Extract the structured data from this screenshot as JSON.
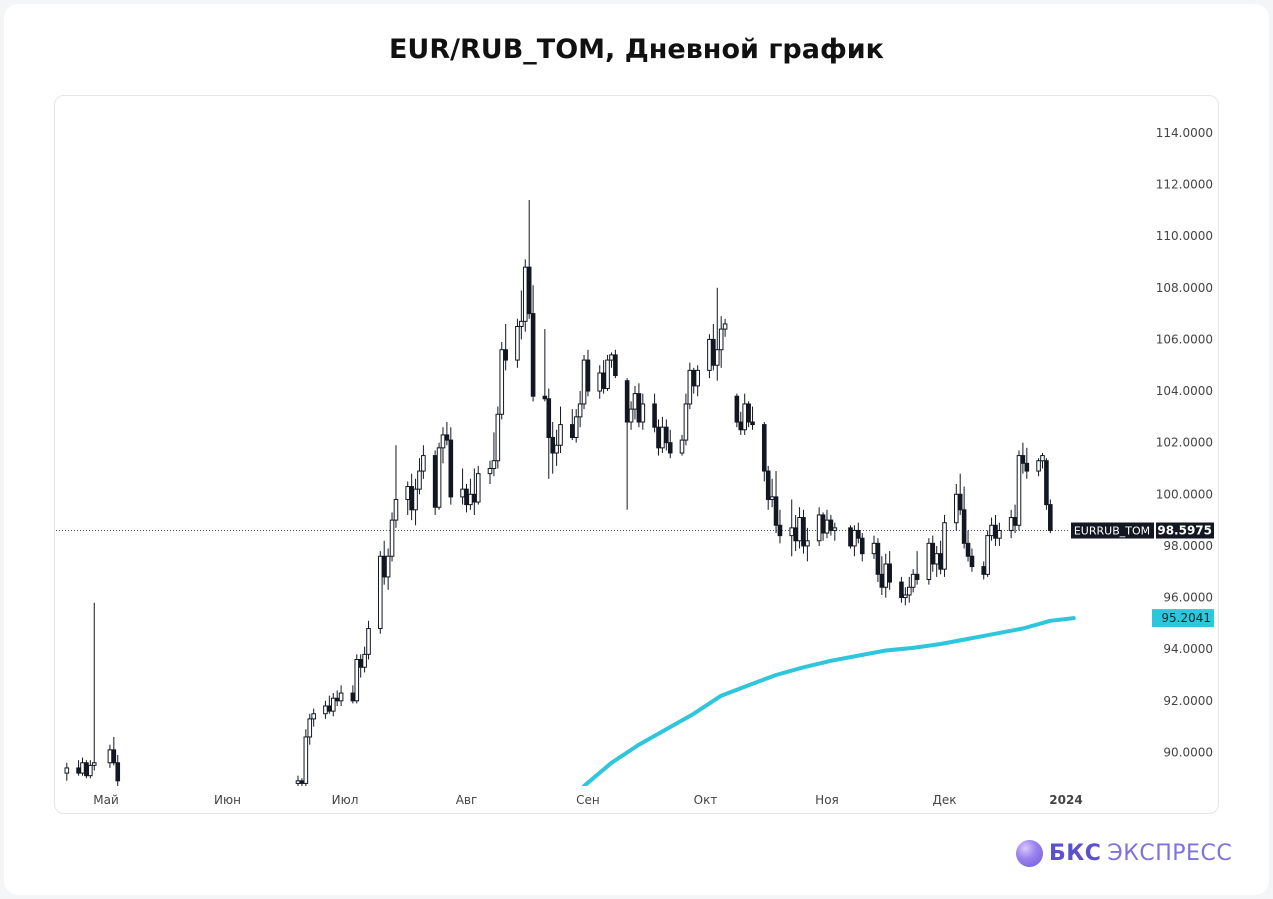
{
  "title": "EUR/RUB_TOM, Дневной график",
  "logo": {
    "brand_bold": "БКС",
    "brand_light": "ЭКСПРЕСС"
  },
  "chart_data": {
    "type": "candlestick",
    "ylim": [
      88.7,
      115.3
    ],
    "y_ticks": [
      90,
      92,
      94,
      96,
      98,
      100,
      102,
      104,
      106,
      108,
      110,
      112,
      114
    ],
    "y_tick_labels": [
      "90.0000",
      "92.0000",
      "94.0000",
      "96.0000",
      "98.0000",
      "100.0000",
      "102.0000",
      "104.0000",
      "106.0000",
      "108.0000",
      "110.0000",
      "112.0000",
      "114.0000"
    ],
    "x_ticks": [
      "Май",
      "Июн",
      "Июл",
      "Авг",
      "Сен",
      "Окт",
      "Ноя",
      "Дек",
      "2024"
    ],
    "grid": false,
    "colors": {
      "candle": "#131722",
      "ma_line": "#2ec6dc",
      "price_label_bg": "#131722",
      "ma_label_bg": "#2ec6dc",
      "axis_text": "#444444",
      "last_price_line": "#555555"
    },
    "last_price": {
      "symbol": "EURRUB_TOM",
      "value_text": "98.5975",
      "value": 98.5975
    },
    "moving_average": {
      "value_text": "95.2041",
      "points": [
        [
          "Авг 31",
          88.7
        ],
        [
          "Сен 7",
          89.6
        ],
        [
          "Сен 14",
          90.3
        ],
        [
          "Сен 21",
          90.9
        ],
        [
          "Сен 28",
          91.5
        ],
        [
          "Окт 5",
          92.2
        ],
        [
          "Окт 12",
          92.6
        ],
        [
          "Окт 19",
          93.0
        ],
        [
          "Окт 26",
          93.3
        ],
        [
          "Ноя 2",
          93.55
        ],
        [
          "Ноя 9",
          93.75
        ],
        [
          "Ноя 16",
          93.95
        ],
        [
          "Ноя 23",
          94.05
        ],
        [
          "Ноя 30",
          94.2
        ],
        [
          "Дек 7",
          94.4
        ],
        [
          "Дек 14",
          94.6
        ],
        [
          "Дек 21",
          94.8
        ],
        [
          "Дек 28",
          95.1
        ],
        [
          "Янв 3",
          95.2041
        ]
      ]
    },
    "candles": [
      [
        "Апр 21",
        89.2,
        89.6,
        88.9,
        89.4
      ],
      [
        "Апр 24",
        89.4,
        89.7,
        89.1,
        89.2
      ],
      [
        "Апр 25",
        89.2,
        89.8,
        89.1,
        89.6
      ],
      [
        "Апр 26",
        89.6,
        89.7,
        89.0,
        89.1
      ],
      [
        "Апр 27",
        89.1,
        89.7,
        89.0,
        89.5
      ],
      [
        "Апр 28",
        89.5,
        95.8,
        89.3,
        89.6
      ],
      [
        "Май 2",
        89.6,
        90.3,
        89.4,
        90.1
      ],
      [
        "Май 3",
        90.1,
        90.6,
        89.5,
        89.6
      ],
      [
        "Май 4",
        89.6,
        89.9,
        88.7,
        88.9
      ],
      [
        "Июн 19",
        88.8,
        89.1,
        88.7,
        88.9
      ],
      [
        "Июн 20",
        88.9,
        89.0,
        88.7,
        88.8
      ],
      [
        "Июн 21",
        88.8,
        90.9,
        88.7,
        90.6
      ],
      [
        "Июн 22",
        90.6,
        91.5,
        90.3,
        91.3
      ],
      [
        "Июн 23",
        91.3,
        91.7,
        91.0,
        91.5
      ],
      [
        "Июн 26",
        91.5,
        92.0,
        91.3,
        91.8
      ],
      [
        "Июн 27",
        91.8,
        92.2,
        91.5,
        91.6
      ],
      [
        "Июн 28",
        91.6,
        92.3,
        91.4,
        92.1
      ],
      [
        "Июн 29",
        92.1,
        92.4,
        91.8,
        92.0
      ],
      [
        "Июн 30",
        92.0,
        92.6,
        91.8,
        92.3
      ],
      [
        "Июл 3",
        92.3,
        92.6,
        91.9,
        92.0
      ],
      [
        "Июл 4",
        92.0,
        93.8,
        91.9,
        93.6
      ],
      [
        "Июл 5",
        93.6,
        93.8,
        92.9,
        93.3
      ],
      [
        "Июл 6",
        93.3,
        94.1,
        93.1,
        93.8
      ],
      [
        "Июл 7",
        93.8,
        95.1,
        93.6,
        94.8
      ],
      [
        "Июл 10",
        94.8,
        97.8,
        94.6,
        97.6
      ],
      [
        "Июл 11",
        97.6,
        98.2,
        96.5,
        96.8
      ],
      [
        "Июл 12",
        96.8,
        97.9,
        96.3,
        97.6
      ],
      [
        "Июл 13",
        97.6,
        99.3,
        97.4,
        99.0
      ],
      [
        "Июл 14",
        99.0,
        101.9,
        98.7,
        99.8
      ],
      [
        "Июл 17",
        99.8,
        100.5,
        99.2,
        100.3
      ],
      [
        "Июл 18",
        100.3,
        100.8,
        99.0,
        99.4
      ],
      [
        "Июл 19",
        99.4,
        100.6,
        98.8,
        100.2
      ],
      [
        "Июл 20",
        100.2,
        101.4,
        100.0,
        100.9
      ],
      [
        "Июл 21",
        100.9,
        101.9,
        100.6,
        101.5
      ],
      [
        "Июл 24",
        101.5,
        101.7,
        99.2,
        99.5
      ],
      [
        "Июл 25",
        99.5,
        102.0,
        99.4,
        101.8
      ],
      [
        "Июл 26",
        101.8,
        102.6,
        101.2,
        102.3
      ],
      [
        "Июл 27",
        102.3,
        102.8,
        101.9,
        102.1
      ],
      [
        "Июл 28",
        102.1,
        102.6,
        99.6,
        99.9
      ],
      [
        "Июл 31",
        99.9,
        101.0,
        99.6,
        100.2
      ],
      [
        "Авг 1",
        100.2,
        100.4,
        99.3,
        99.6
      ],
      [
        "Авг 2",
        99.6,
        100.6,
        99.4,
        100.0
      ],
      [
        "Авг 3",
        100.0,
        101.0,
        99.2,
        99.7
      ],
      [
        "Авг 4",
        99.7,
        101.1,
        99.6,
        100.8
      ],
      [
        "Авг 7",
        100.8,
        101.3,
        100.4,
        101.0
      ],
      [
        "Авг 8",
        101.0,
        102.4,
        100.7,
        101.3
      ],
      [
        "Авг 9",
        101.3,
        103.4,
        101.0,
        103.1
      ],
      [
        "Авг 10",
        103.1,
        105.9,
        102.9,
        105.6
      ],
      [
        "Авг 11",
        105.6,
        106.6,
        104.8,
        105.2
      ],
      [
        "Авг 14",
        105.2,
        106.8,
        104.9,
        106.5
      ],
      [
        "Авг 15",
        106.5,
        107.9,
        106.0,
        106.7
      ],
      [
        "Авг 16",
        106.7,
        109.1,
        106.3,
        108.8
      ],
      [
        "Авг 17",
        108.8,
        111.4,
        106.8,
        107.0
      ],
      [
        "Авг 18",
        107.0,
        108.1,
        103.6,
        103.8
      ],
      [
        "Авг 21",
        103.8,
        106.4,
        103.6,
        103.7
      ],
      [
        "Авг 22",
        103.7,
        104.1,
        100.6,
        102.2
      ],
      [
        "Авг 23",
        102.2,
        102.8,
        100.8,
        101.6
      ],
      [
        "Авг 24",
        101.6,
        102.5,
        101.1,
        101.9
      ],
      [
        "Авг 25",
        101.9,
        103.4,
        101.6,
        102.7
      ],
      [
        "Авг 28",
        102.7,
        103.3,
        102.1,
        102.2
      ],
      [
        "Авг 29",
        102.2,
        103.3,
        102.0,
        103.0
      ],
      [
        "Авг 30",
        103.0,
        104.0,
        102.6,
        103.5
      ],
      [
        "Авг 31",
        103.5,
        105.4,
        103.3,
        105.2
      ],
      [
        "Сен 1",
        105.2,
        105.6,
        103.8,
        104.0
      ],
      [
        "Сен 4",
        104.0,
        105.0,
        103.7,
        104.7
      ],
      [
        "Сен 5",
        104.7,
        105.2,
        103.9,
        104.1
      ],
      [
        "Сен 6",
        104.1,
        105.4,
        104.0,
        105.2
      ],
      [
        "Сен 7",
        105.2,
        105.5,
        104.9,
        105.4
      ],
      [
        "Сен 8",
        105.4,
        105.6,
        104.5,
        104.6
      ],
      [
        "Сен 11",
        104.4,
        104.5,
        99.4,
        102.8
      ],
      [
        "Сен 12",
        102.8,
        103.6,
        102.5,
        103.3
      ],
      [
        "Сен 13",
        103.3,
        104.2,
        102.9,
        103.9
      ],
      [
        "Сен 14",
        103.9,
        104.3,
        102.6,
        102.8
      ],
      [
        "Сен 15",
        102.8,
        103.9,
        102.5,
        103.5
      ],
      [
        "Сен 18",
        103.5,
        103.9,
        102.4,
        102.6
      ],
      [
        "Сен 19",
        102.6,
        102.9,
        101.5,
        101.8
      ],
      [
        "Сен 20",
        101.8,
        103.0,
        101.6,
        102.6
      ],
      [
        "Сен 21",
        102.6,
        102.9,
        101.7,
        102.0
      ],
      [
        "Сен 22",
        102.0,
        102.5,
        101.4,
        101.6
      ],
      [
        "Сен 25",
        101.6,
        102.3,
        101.5,
        102.1
      ],
      [
        "Сен 26",
        102.1,
        103.9,
        101.9,
        103.5
      ],
      [
        "Сен 27",
        103.5,
        105.1,
        103.3,
        104.8
      ],
      [
        "Сен 28",
        104.8,
        104.9,
        103.9,
        104.2
      ],
      [
        "Сен 29",
        104.2,
        105.0,
        103.8,
        104.8
      ],
      [
        "Окт 2",
        104.8,
        106.2,
        104.5,
        106.0
      ],
      [
        "Окт 3",
        106.0,
        106.6,
        104.8,
        105.0
      ],
      [
        "Окт 4",
        105.0,
        108.0,
        104.4,
        105.6
      ],
      [
        "Окт 5",
        105.6,
        106.9,
        104.9,
        106.4
      ],
      [
        "Окт 6",
        106.4,
        106.8,
        106.1,
        106.6
      ],
      [
        "Окт 9",
        103.8,
        103.9,
        102.6,
        102.8
      ],
      [
        "Окт 10",
        102.8,
        103.2,
        102.3,
        102.5
      ],
      [
        "Окт 11",
        102.5,
        103.9,
        102.3,
        103.5
      ],
      [
        "Окт 12",
        103.5,
        103.6,
        102.6,
        102.8
      ],
      [
        "Окт 13",
        102.8,
        103.4,
        102.5,
        102.7
      ],
      [
        "Окт 16",
        102.7,
        102.8,
        100.5,
        100.9
      ],
      [
        "Окт 17",
        100.9,
        101.1,
        99.4,
        99.8
      ],
      [
        "Окт 18",
        99.8,
        100.6,
        99.5,
        99.9
      ],
      [
        "Окт 19",
        99.9,
        100.9,
        98.5,
        98.8
      ],
      [
        "Окт 20",
        98.8,
        99.4,
        98.1,
        98.4
      ],
      [
        "Окт 23",
        98.4,
        99.8,
        97.6,
        98.7
      ],
      [
        "Окт 24",
        98.7,
        99.2,
        97.8,
        98.2
      ],
      [
        "Окт 25",
        98.2,
        99.5,
        97.9,
        99.1
      ],
      [
        "Окт 26",
        99.1,
        99.4,
        97.7,
        98.0
      ],
      [
        "Окт 27",
        98.0,
        98.7,
        97.4,
        98.2
      ],
      [
        "Окт 30",
        98.2,
        99.5,
        98.0,
        99.2
      ],
      [
        "Окт 31",
        99.2,
        99.3,
        98.2,
        98.5
      ],
      [
        "Ноя 1",
        98.5,
        99.4,
        98.3,
        99.0
      ],
      [
        "Ноя 2",
        99.0,
        99.2,
        98.4,
        98.6
      ],
      [
        "Ноя 3",
        98.6,
        98.9,
        98.2,
        98.7
      ],
      [
        "Ноя 7",
        98.7,
        98.8,
        97.9,
        98.0
      ],
      [
        "Ноя 8",
        98.0,
        98.8,
        97.6,
        98.6
      ],
      [
        "Ноя 9",
        98.6,
        98.9,
        98.1,
        98.3
      ],
      [
        "Ноя 10",
        98.3,
        98.5,
        97.4,
        97.7
      ],
      [
        "Ноя 13",
        97.7,
        98.4,
        97.5,
        98.1
      ],
      [
        "Ноя 14",
        98.1,
        98.3,
        96.6,
        96.9
      ],
      [
        "Ноя 15",
        96.9,
        97.6,
        96.1,
        96.4
      ],
      [
        "Ноя 16",
        96.4,
        97.7,
        96.0,
        97.3
      ],
      [
        "Ноя 17",
        97.3,
        97.8,
        96.3,
        96.6
      ],
      [
        "Ноя 20",
        96.6,
        96.8,
        95.8,
        96.0
      ],
      [
        "Ноя 21",
        96.0,
        96.4,
        95.7,
        96.1
      ],
      [
        "Ноя 22",
        96.1,
        96.8,
        95.8,
        96.4
      ],
      [
        "Ноя 23",
        96.4,
        97.1,
        96.2,
        96.9
      ],
      [
        "Ноя 24",
        96.9,
        97.8,
        96.5,
        96.7
      ],
      [
        "Ноя 27",
        96.7,
        98.3,
        96.5,
        98.1
      ],
      [
        "Ноя 28",
        98.1,
        98.4,
        97.0,
        97.3
      ],
      [
        "Ноя 29",
        97.3,
        98.0,
        96.8,
        97.7
      ],
      [
        "Ноя 30",
        97.7,
        98.2,
        96.9,
        97.1
      ],
      [
        "Дек 1",
        97.1,
        99.2,
        96.8,
        98.9
      ],
      [
        "Дек 4",
        98.9,
        100.4,
        98.6,
        100.0
      ],
      [
        "Дек 5",
        100.0,
        100.8,
        99.2,
        99.4
      ],
      [
        "Дек 6",
        99.4,
        100.3,
        97.9,
        98.1
      ],
      [
        "Дек 7",
        98.1,
        98.6,
        97.4,
        97.6
      ],
      [
        "Дек 8",
        97.6,
        97.9,
        97.0,
        97.2
      ],
      [
        "Дек 11",
        97.2,
        97.4,
        96.7,
        96.9
      ],
      [
        "Дек 12",
        96.9,
        98.6,
        96.8,
        98.4
      ],
      [
        "Дек 13",
        98.4,
        99.1,
        98.2,
        98.8
      ],
      [
        "Дек 14",
        98.8,
        99.2,
        98.0,
        98.3
      ],
      [
        "Дек 15",
        98.3,
        98.9,
        98.0,
        98.6
      ],
      [
        "Дек 18",
        98.6,
        99.4,
        98.3,
        99.1
      ],
      [
        "Дек 19",
        99.1,
        99.6,
        98.5,
        98.8
      ],
      [
        "Дек 20",
        98.8,
        101.7,
        98.6,
        101.5
      ],
      [
        "Дек 21",
        101.5,
        102.0,
        100.8,
        101.2
      ],
      [
        "Дек 22",
        101.2,
        101.8,
        100.6,
        100.9
      ],
      [
        "Дек 25",
        100.9,
        101.4,
        100.7,
        101.3
      ],
      [
        "Дек 26",
        101.3,
        101.6,
        101.0,
        101.5
      ],
      [
        "Дек 27",
        101.3,
        101.4,
        99.4,
        99.6
      ],
      [
        "Дек 28",
        99.6,
        99.8,
        98.5,
        98.6
      ]
    ]
  }
}
